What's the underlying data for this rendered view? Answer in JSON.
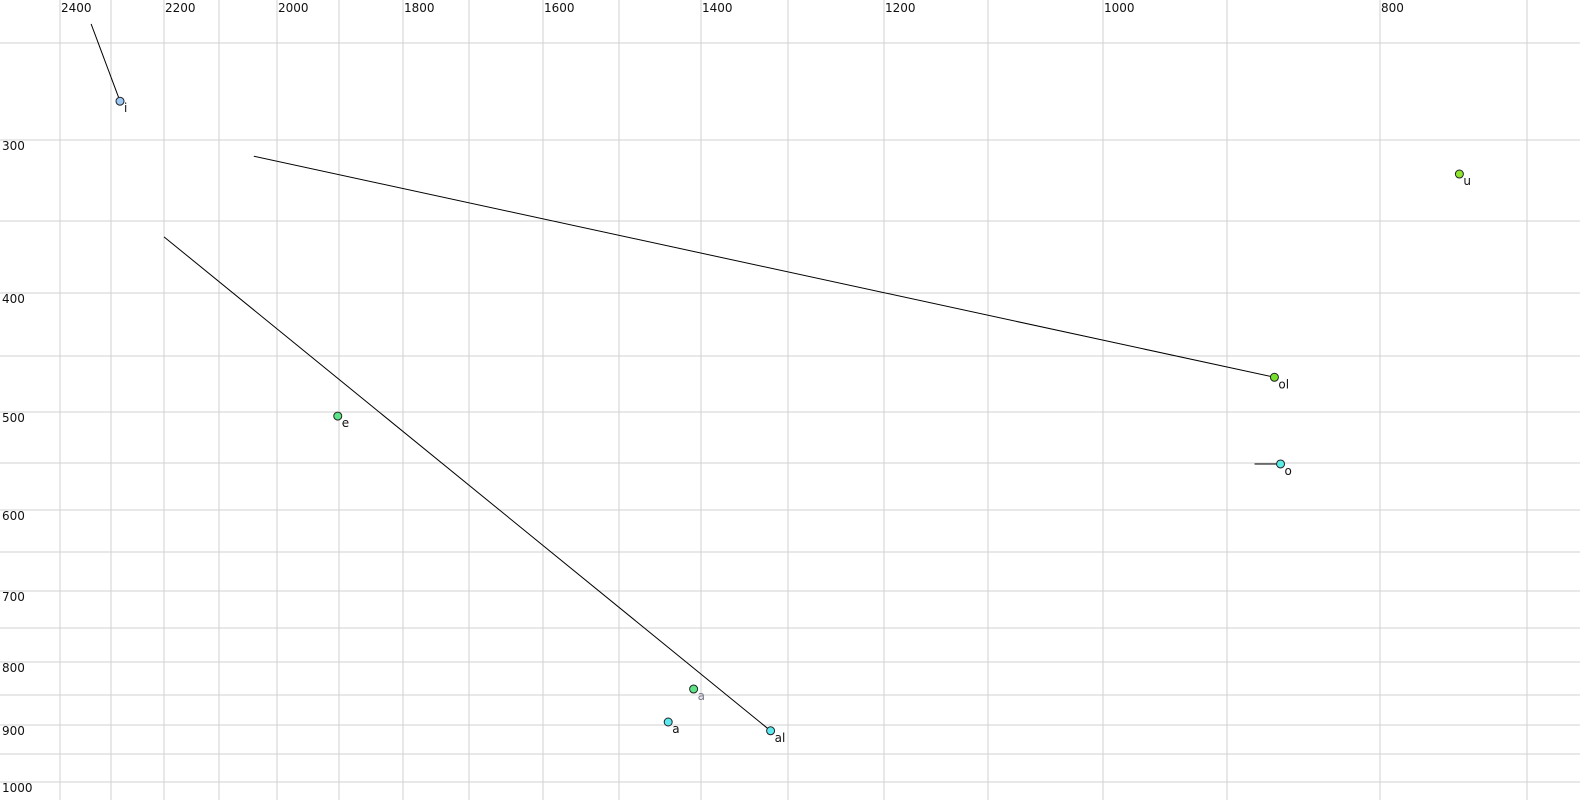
{
  "chart_data": {
    "type": "scatter",
    "title": "",
    "xlabel": "",
    "ylabel": "",
    "x_reversed": true,
    "y_reversed": true,
    "xlim": [
      2400,
      700
    ],
    "ylim": [
      250,
      1000
    ],
    "grid": true,
    "x_ticks": [
      2400,
      2200,
      2000,
      1800,
      1600,
      1400,
      1200,
      1000,
      800
    ],
    "y_ticks": [
      300,
      400,
      500,
      600,
      700,
      800,
      900,
      1000
    ],
    "points": [
      {
        "label": "i",
        "x": 2283,
        "y": 280,
        "color": "#9cc8f4",
        "trail_from": {
          "x": 2339,
          "y": 232
        }
      },
      {
        "label": "u",
        "x": 746,
        "y": 321,
        "color": "#8ee62e"
      },
      {
        "label": "ol",
        "x": 869,
        "y": 469,
        "color": "#74e02c",
        "trail_from": {
          "x": 2040,
          "y": 310
        }
      },
      {
        "label": "o",
        "x": 865,
        "y": 551,
        "color": "#5cece6",
        "trail_from": {
          "x": 882,
          "y": 551
        }
      },
      {
        "label": "e",
        "x": 1902,
        "y": 504,
        "color": "#5ce486"
      },
      {
        "label": "a",
        "x": 1409,
        "y": 841,
        "color": "#5ce486",
        "label_color": "#777788"
      },
      {
        "label": "a",
        "x": 1440,
        "y": 895,
        "color": "#5ce8f0"
      },
      {
        "label": "al",
        "x": 1320,
        "y": 910,
        "color": "#5ce8f0",
        "trail_from": {
          "x": 2200,
          "y": 361
        }
      }
    ]
  }
}
